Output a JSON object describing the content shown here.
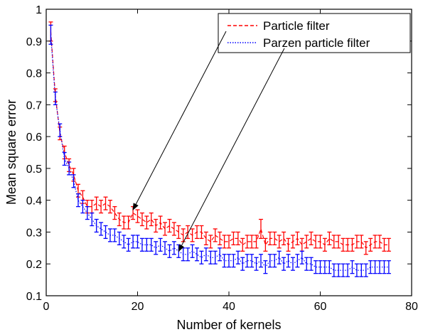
{
  "chart_data": {
    "type": "line",
    "xlabel": "Number of kernels",
    "ylabel": "Mean square error",
    "xlim": [
      0,
      80
    ],
    "ylim": [
      0.1,
      1
    ],
    "xticks": [
      0,
      20,
      40,
      60,
      80
    ],
    "yticks": [
      0.1,
      0.2,
      0.3,
      0.4,
      0.5,
      0.6,
      0.7,
      0.8,
      0.9,
      1
    ],
    "xtick_labels": [
      "0",
      "20",
      "40",
      "60",
      "80"
    ],
    "ytick_labels": [
      "0.1",
      "0.2",
      "0.3",
      "0.4",
      "0.5",
      "0.6",
      "0.7",
      "0.8",
      "0.9",
      "1"
    ],
    "grid": false,
    "legend_position": "top-right",
    "x": [
      1,
      2,
      3,
      4,
      5,
      6,
      7,
      8,
      9,
      10,
      11,
      12,
      13,
      14,
      15,
      16,
      17,
      18,
      19,
      20,
      21,
      22,
      23,
      24,
      25,
      26,
      27,
      28,
      29,
      30,
      31,
      32,
      33,
      34,
      35,
      36,
      37,
      38,
      39,
      40,
      41,
      42,
      43,
      44,
      45,
      46,
      47,
      48,
      49,
      50,
      51,
      52,
      53,
      54,
      55,
      56,
      57,
      58,
      59,
      60,
      61,
      62,
      63,
      64,
      65,
      66,
      67,
      68,
      69,
      70,
      71,
      72,
      73,
      74,
      75
    ],
    "series": [
      {
        "name": "Particle filter",
        "color": "#ff0000",
        "dash": "dashed",
        "values": [
          0.93,
          0.73,
          0.61,
          0.55,
          0.51,
          0.48,
          0.43,
          0.41,
          0.38,
          0.38,
          0.39,
          0.38,
          0.39,
          0.38,
          0.36,
          0.34,
          0.33,
          0.33,
          0.36,
          0.35,
          0.34,
          0.33,
          0.34,
          0.32,
          0.33,
          0.31,
          0.32,
          0.31,
          0.3,
          0.29,
          0.3,
          0.29,
          0.3,
          0.3,
          0.28,
          0.27,
          0.29,
          0.28,
          0.27,
          0.27,
          0.28,
          0.28,
          0.26,
          0.27,
          0.27,
          0.27,
          0.31,
          0.26,
          0.28,
          0.28,
          0.27,
          0.28,
          0.26,
          0.27,
          0.28,
          0.26,
          0.27,
          0.28,
          0.27,
          0.27,
          0.26,
          0.28,
          0.27,
          0.27,
          0.26,
          0.26,
          0.26,
          0.27,
          0.27,
          0.25,
          0.26,
          0.27,
          0.27,
          0.26,
          0.26
        ],
        "errors": [
          0.03,
          0.02,
          0.02,
          0.02,
          0.02,
          0.02,
          0.02,
          0.02,
          0.02,
          0.02,
          0.02,
          0.02,
          0.02,
          0.02,
          0.02,
          0.02,
          0.02,
          0.02,
          0.02,
          0.02,
          0.02,
          0.02,
          0.02,
          0.02,
          0.02,
          0.02,
          0.02,
          0.02,
          0.02,
          0.02,
          0.02,
          0.02,
          0.02,
          0.02,
          0.02,
          0.02,
          0.02,
          0.02,
          0.02,
          0.02,
          0.02,
          0.02,
          0.02,
          0.02,
          0.02,
          0.02,
          0.03,
          0.02,
          0.02,
          0.02,
          0.02,
          0.02,
          0.02,
          0.02,
          0.02,
          0.02,
          0.02,
          0.02,
          0.02,
          0.02,
          0.02,
          0.02,
          0.02,
          0.02,
          0.02,
          0.02,
          0.02,
          0.02,
          0.02,
          0.02,
          0.02,
          0.02,
          0.02,
          0.02,
          0.02
        ]
      },
      {
        "name": "Parzen particle filter",
        "color": "#0000ff",
        "dash": "dotted",
        "values": [
          0.92,
          0.72,
          0.62,
          0.53,
          0.5,
          0.46,
          0.4,
          0.38,
          0.36,
          0.34,
          0.32,
          0.31,
          0.3,
          0.29,
          0.29,
          0.28,
          0.27,
          0.26,
          0.27,
          0.27,
          0.26,
          0.26,
          0.26,
          0.25,
          0.26,
          0.25,
          0.24,
          0.25,
          0.24,
          0.23,
          0.23,
          0.24,
          0.23,
          0.22,
          0.23,
          0.22,
          0.22,
          0.23,
          0.21,
          0.21,
          0.21,
          0.22,
          0.2,
          0.21,
          0.21,
          0.2,
          0.21,
          0.19,
          0.21,
          0.21,
          0.22,
          0.2,
          0.21,
          0.2,
          0.21,
          0.22,
          0.2,
          0.2,
          0.19,
          0.19,
          0.19,
          0.19,
          0.18,
          0.18,
          0.18,
          0.18,
          0.19,
          0.18,
          0.18,
          0.18,
          0.19,
          0.19,
          0.19,
          0.19,
          0.19
        ],
        "errors": [
          0.03,
          0.02,
          0.02,
          0.02,
          0.02,
          0.02,
          0.02,
          0.02,
          0.02,
          0.02,
          0.02,
          0.02,
          0.02,
          0.02,
          0.02,
          0.02,
          0.02,
          0.02,
          0.02,
          0.02,
          0.02,
          0.02,
          0.02,
          0.02,
          0.02,
          0.02,
          0.02,
          0.02,
          0.02,
          0.02,
          0.02,
          0.02,
          0.02,
          0.02,
          0.02,
          0.02,
          0.02,
          0.02,
          0.02,
          0.02,
          0.02,
          0.02,
          0.02,
          0.02,
          0.02,
          0.02,
          0.02,
          0.02,
          0.02,
          0.02,
          0.02,
          0.02,
          0.02,
          0.02,
          0.02,
          0.02,
          0.02,
          0.02,
          0.02,
          0.02,
          0.02,
          0.02,
          0.02,
          0.02,
          0.02,
          0.02,
          0.02,
          0.02,
          0.02,
          0.02,
          0.02,
          0.02,
          0.02,
          0.02,
          0.02
        ]
      }
    ],
    "annotations": [
      {
        "type": "arrow",
        "from_legend": "Particle filter",
        "to": [
          19,
          0.37
        ]
      },
      {
        "type": "arrow",
        "from_legend": "Parzen particle filter",
        "to": [
          29,
          0.24
        ]
      }
    ]
  }
}
